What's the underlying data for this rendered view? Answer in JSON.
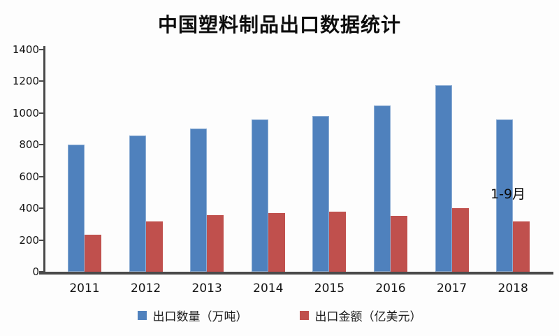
{
  "title": "中国塑料制品出口数据统计",
  "chart_data": {
    "type": "bar",
    "title": "中国塑料制品出口数据统计",
    "categories": [
      "2011",
      "2012",
      "2013",
      "2014",
      "2015",
      "2016",
      "2017",
      "2018"
    ],
    "series": [
      {
        "name": "出口数量（万吨）",
        "color": "#4f81bd",
        "values": [
          800,
          855,
          900,
          958,
          980,
          1045,
          1175,
          958
        ]
      },
      {
        "name": "出口金额（亿美元）",
        "color": "#c0504d",
        "values": [
          235,
          318,
          356,
          368,
          376,
          352,
          398,
          316
        ]
      }
    ],
    "xlabel": "",
    "ylabel": "",
    "ylim": [
      0,
      1400
    ],
    "yticks": [
      0,
      200,
      400,
      600,
      800,
      1000,
      1200,
      1400
    ],
    "grid": false,
    "legend_position": "bottom",
    "annotations": [
      {
        "text": "1-9月",
        "target_category": "2018"
      }
    ],
    "axis_color": "#4a4a4a",
    "text_color": "#141414"
  }
}
